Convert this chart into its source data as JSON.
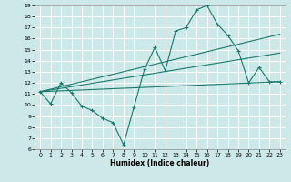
{
  "title": "",
  "xlabel": "Humidex (Indice chaleur)",
  "bg_color": "#cce8e8",
  "grid_color": "#ffffff",
  "line_color": "#1a7a6e",
  "xlim": [
    -0.5,
    23.5
  ],
  "ylim": [
    6,
    19
  ],
  "xticks": [
    0,
    1,
    2,
    3,
    4,
    5,
    6,
    7,
    8,
    9,
    10,
    11,
    12,
    13,
    14,
    15,
    16,
    17,
    18,
    19,
    20,
    21,
    22,
    23
  ],
  "yticks": [
    6,
    7,
    8,
    9,
    10,
    11,
    12,
    13,
    14,
    15,
    16,
    17,
    18,
    19
  ],
  "main_x": [
    0,
    1,
    2,
    3,
    4,
    5,
    6,
    7,
    8,
    9,
    10,
    11,
    12,
    13,
    14,
    15,
    16,
    17,
    18,
    19,
    20,
    21,
    22,
    23
  ],
  "main_y": [
    11.2,
    10.1,
    12.0,
    11.1,
    9.9,
    9.5,
    8.8,
    8.4,
    6.4,
    9.8,
    13.2,
    15.2,
    13.1,
    16.7,
    17.0,
    18.6,
    19.0,
    17.3,
    16.3,
    14.9,
    12.0,
    13.4,
    12.1,
    12.1
  ],
  "line1_x": [
    0,
    23
  ],
  "line1_y": [
    11.2,
    12.1
  ],
  "line2_x": [
    0,
    23
  ],
  "line2_y": [
    11.2,
    16.4
  ],
  "line3_x": [
    0,
    23
  ],
  "line3_y": [
    11.2,
    14.7
  ]
}
